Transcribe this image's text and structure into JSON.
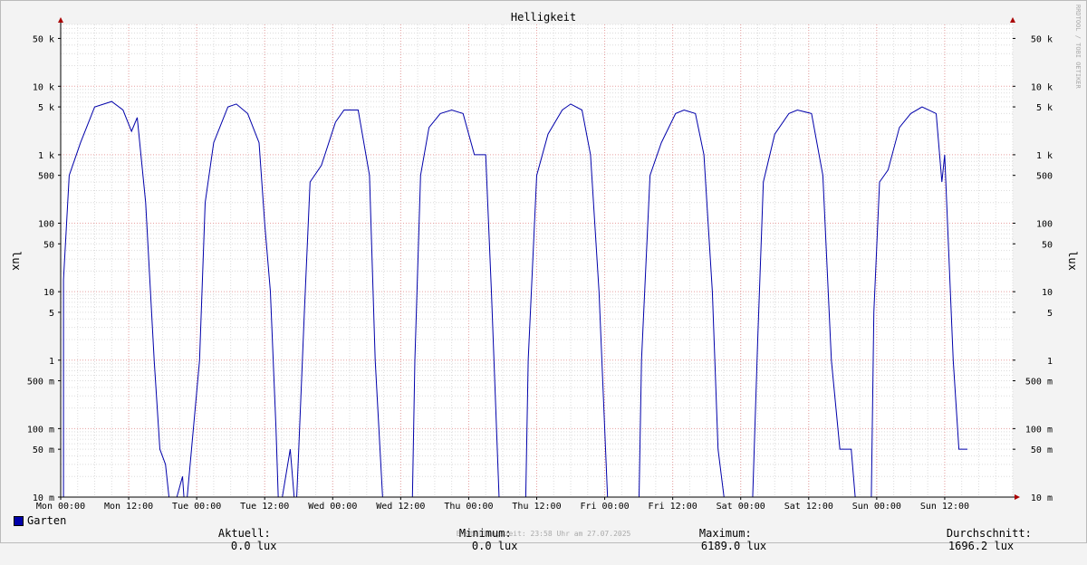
{
  "chart_data": {
    "type": "line",
    "title": "Helligkeit",
    "ylabel": "lux",
    "yscale": "log",
    "ylim": [
      0.01,
      80000
    ],
    "y_ticks": [
      0.01,
      0.05,
      0.1,
      0.5,
      1,
      5,
      10,
      50,
      100,
      500,
      1000,
      5000,
      10000,
      50000
    ],
    "y_tick_labels": [
      "10 m",
      "50 m",
      "100 m",
      "500 m",
      "1",
      "5",
      "10",
      "50",
      "100",
      "500",
      "1 k",
      "5 k",
      "10 k",
      "50 k"
    ],
    "x_unit": "hours since Mon 00:00",
    "xlim": [
      0,
      168
    ],
    "x_ticks": [
      0,
      12,
      24,
      36,
      48,
      60,
      72,
      84,
      96,
      108,
      120,
      132,
      144,
      156
    ],
    "x_tick_labels": [
      "Mon 00:00",
      "Mon 12:00",
      "Tue 00:00",
      "Tue 12:00",
      "Wed 00:00",
      "Wed 12:00",
      "Thu 00:00",
      "Thu 12:00",
      "Fri 00:00",
      "Fri 12:00",
      "Sat 00:00",
      "Sat 12:00",
      "Sun 00:00",
      "Sun 12:00"
    ],
    "grid": true,
    "legend_position": "bottom-left",
    "series": [
      {
        "name": "Garten",
        "color": "#0000aa",
        "points": [
          [
            0.5,
            0.005
          ],
          [
            0.5,
            15
          ],
          [
            1.5,
            500
          ],
          [
            3.5,
            1500
          ],
          [
            6,
            5000
          ],
          [
            9,
            6000
          ],
          [
            11,
            4500
          ],
          [
            12.5,
            2200
          ],
          [
            13.5,
            3500
          ],
          [
            15,
            200
          ],
          [
            16.5,
            1
          ],
          [
            17.5,
            0.05
          ],
          [
            18.5,
            0.03
          ],
          [
            19.5,
            0.005
          ],
          [
            21.5,
            0.02
          ],
          [
            22,
            0.005
          ],
          [
            24.5,
            1
          ],
          [
            25.5,
            200
          ],
          [
            27,
            1500
          ],
          [
            29.5,
            5000
          ],
          [
            31,
            5500
          ],
          [
            33,
            4000
          ],
          [
            35,
            1500
          ],
          [
            36,
            100
          ],
          [
            37,
            10
          ],
          [
            38,
            0.1
          ],
          [
            38.5,
            0.005
          ],
          [
            40.5,
            0.05
          ],
          [
            41.5,
            0.005
          ],
          [
            42,
            0.05
          ],
          [
            43,
            5
          ],
          [
            44,
            400
          ],
          [
            46,
            700
          ],
          [
            48.5,
            3000
          ],
          [
            50,
            4500
          ],
          [
            52.5,
            4500
          ],
          [
            54.5,
            500
          ],
          [
            55.5,
            1
          ],
          [
            57,
            0.005
          ],
          [
            62,
            0.005
          ],
          [
            62.5,
            1
          ],
          [
            63.5,
            500
          ],
          [
            65,
            2500
          ],
          [
            67,
            4000
          ],
          [
            69,
            4500
          ],
          [
            71,
            4000
          ],
          [
            73,
            1000
          ],
          [
            75,
            1000
          ],
          [
            76,
            10
          ],
          [
            77.5,
            0.005
          ],
          [
            82,
            0.005
          ],
          [
            82.5,
            1
          ],
          [
            84,
            500
          ],
          [
            86,
            2000
          ],
          [
            88.5,
            4500
          ],
          [
            90,
            5500
          ],
          [
            92,
            4500
          ],
          [
            93.5,
            1000
          ],
          [
            95,
            10
          ],
          [
            96.5,
            0.01
          ],
          [
            98,
            0.005
          ],
          [
            102,
            0.005
          ],
          [
            102.5,
            1
          ],
          [
            104,
            500
          ],
          [
            106,
            1500
          ],
          [
            108.5,
            4000
          ],
          [
            110,
            4500
          ],
          [
            112,
            4000
          ],
          [
            113.5,
            1000
          ],
          [
            115,
            10
          ],
          [
            116,
            0.05
          ],
          [
            117.5,
            0.005
          ],
          [
            122,
            0.005
          ],
          [
            123,
            2
          ],
          [
            124,
            400
          ],
          [
            126,
            2000
          ],
          [
            128.5,
            4000
          ],
          [
            130,
            4500
          ],
          [
            132.5,
            4000
          ],
          [
            134.5,
            500
          ],
          [
            136,
            1
          ],
          [
            137.5,
            0.05
          ],
          [
            139.5,
            0.05
          ],
          [
            140.5,
            0.005
          ],
          [
            143,
            0.005
          ],
          [
            143.5,
            5
          ],
          [
            144.5,
            400
          ],
          [
            146,
            600
          ],
          [
            148,
            2500
          ],
          [
            150,
            4000
          ],
          [
            152,
            5000
          ],
          [
            154.5,
            4000
          ],
          [
            155.5,
            400
          ],
          [
            156,
            1000
          ],
          [
            157.5,
            1
          ],
          [
            158.5,
            0.05
          ],
          [
            160,
            0.05
          ]
        ]
      }
    ],
    "stats": {
      "current_label": "Aktuell:",
      "current_value": "0.0 lux",
      "min_label": "Minimum:",
      "min_value": "0.0 lux",
      "max_label": "Maximum:",
      "max_value": "6189.0 lux",
      "avg_label": "Durchschnitt:",
      "avg_value": "1696.2 lux"
    },
    "footer": "Erstellungszeit: 23:58 Uhr am 27.07.2025",
    "watermark": "RRDTOOL / TOBI OETIKER"
  },
  "colors": {
    "background": "#f3f3f3",
    "canvas": "#ffffff",
    "line": "#0000aa",
    "grid_minor": "#dcdcdc",
    "grid_major": "#e8a0a0",
    "arrow": "#aa0000"
  }
}
